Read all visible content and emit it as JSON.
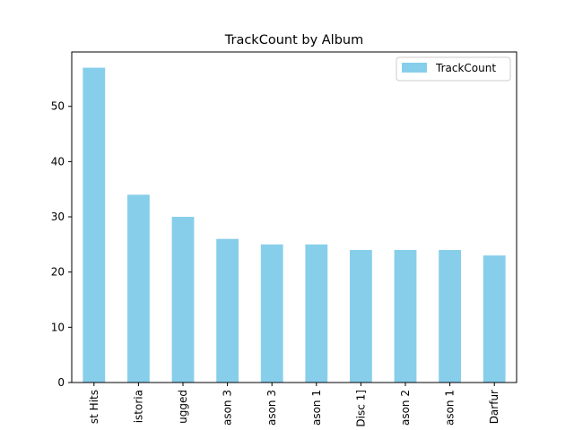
{
  "chart_data": {
    "type": "bar",
    "title": "TrackCount by Album",
    "xlabel": "",
    "ylabel": "",
    "categories": [
      "st Hits",
      "istoria",
      "ugged",
      "ason 3",
      "ason 3",
      "ason 1",
      "Disc 1]",
      "ason 2",
      "ason 1",
      "Darfur"
    ],
    "series": [
      {
        "name": "TrackCount",
        "values": [
          57,
          34,
          30,
          26,
          25,
          25,
          24,
          24,
          24,
          23
        ]
      }
    ],
    "yticks": [
      0,
      10,
      20,
      30,
      40,
      50
    ],
    "ylim": [
      0,
      59.85
    ],
    "grid": false,
    "legend_position": "top-right",
    "colors": {
      "bar": "#87ceeb",
      "axis": "#000000",
      "background": "#ffffff"
    }
  }
}
